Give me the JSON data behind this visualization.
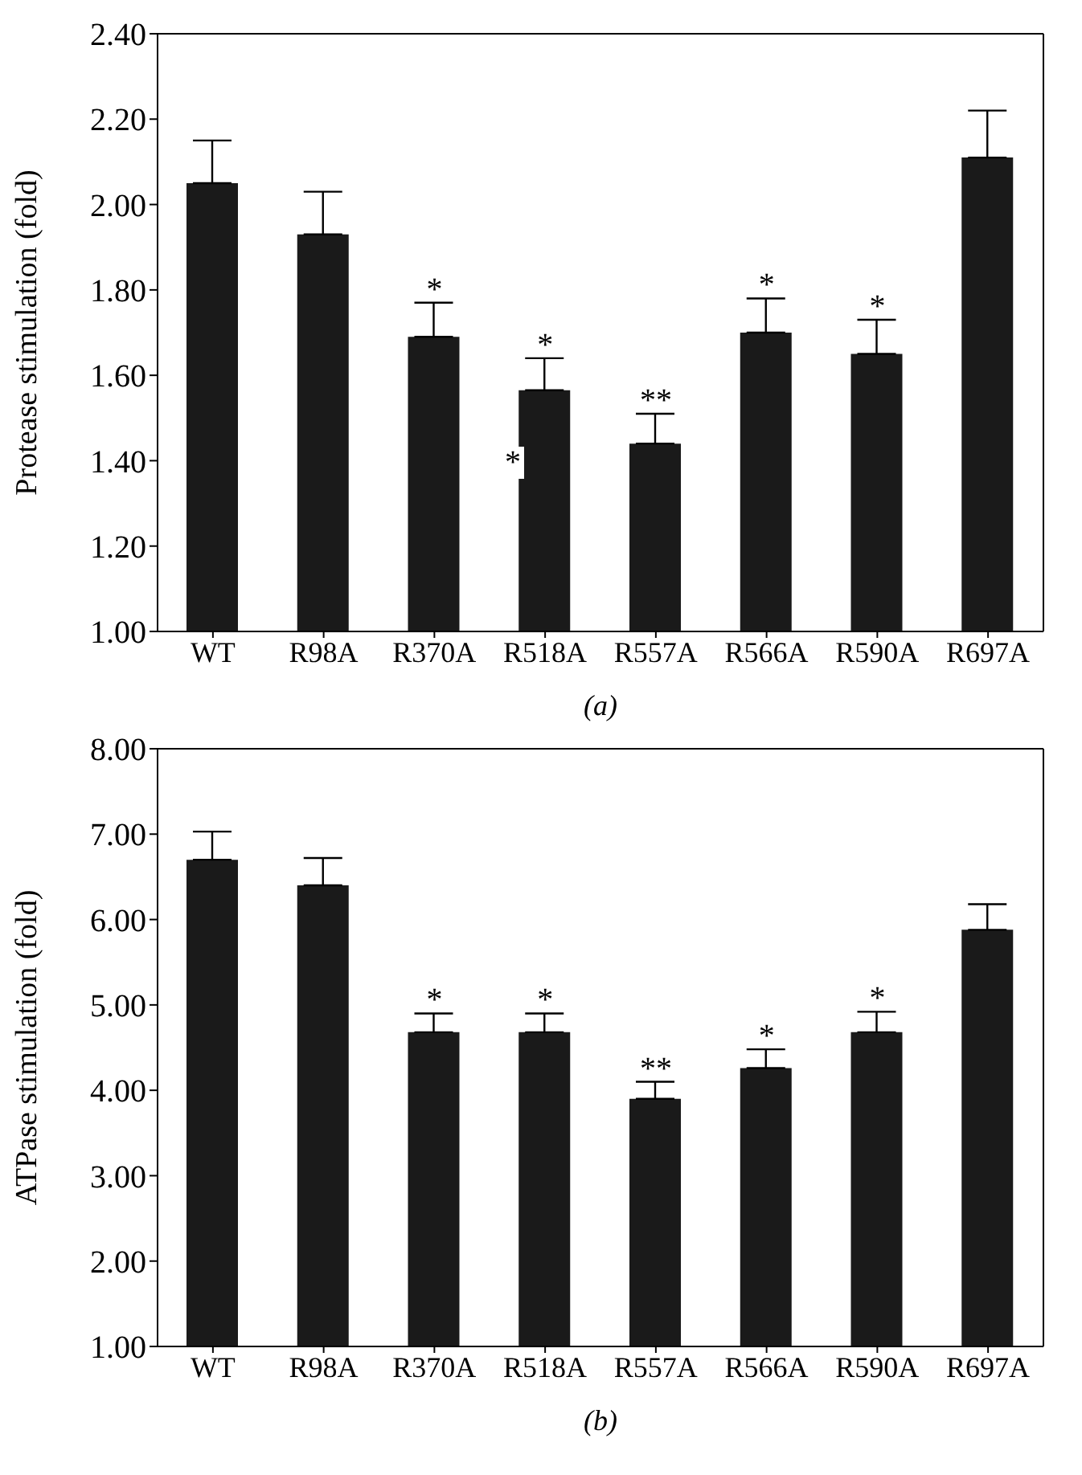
{
  "chart_data": [
    {
      "type": "bar",
      "xlabel": "(a)",
      "ylabel": "Protease stimulation (fold)",
      "categories": [
        "WT",
        "R98A",
        "R370A",
        "R518A",
        "R557A",
        "R566A",
        "R590A",
        "R697A"
      ],
      "values": [
        2.05,
        1.93,
        1.69,
        1.565,
        1.44,
        1.7,
        1.65,
        2.11
      ],
      "errors": [
        [
          2.05,
          2.15
        ],
        [
          1.93,
          2.03
        ],
        [
          1.69,
          1.77
        ],
        [
          1.565,
          1.64
        ],
        [
          1.44,
          1.51
        ],
        [
          1.7,
          1.78
        ],
        [
          1.65,
          1.73
        ],
        [
          2.11,
          2.22
        ]
      ],
      "color": "#1a1a1a",
      "ylim": [
        1.0,
        2.4
      ],
      "yticks": [
        {
          "value": 1.0,
          "label": "1.00"
        },
        {
          "value": 1.2,
          "label": "1.20"
        },
        {
          "value": 1.4,
          "label": "1.40"
        },
        {
          "value": 1.6,
          "label": "1.60"
        },
        {
          "value": 1.8,
          "label": "1.80"
        },
        {
          "value": 2.0,
          "label": "2.00"
        },
        {
          "value": 2.2,
          "label": "2.20"
        },
        {
          "value": 2.4,
          "label": "2.40"
        }
      ],
      "grid": false,
      "legend": false,
      "annotations": [
        {
          "text": "*",
          "x": "R370A",
          "y": 1.77
        },
        {
          "text": "*",
          "x": "R518A",
          "y": 1.64
        },
        {
          "text": "**",
          "x": "R557A",
          "y": 1.51
        },
        {
          "text": "*",
          "x": "R566A",
          "y": 1.78
        },
        {
          "text": "*",
          "x": "R590A",
          "y": 1.73
        },
        "*"
      ]
    },
    {
      "type": "bar",
      "xlabel": "(b)",
      "ylabel": "ATPase stimulation (fold)",
      "categories": [
        "WT",
        "R98A",
        "R370A",
        "R518A",
        "R557A",
        "R566A",
        "R590A",
        "R697A"
      ],
      "values": [
        6.7,
        6.4,
        4.68,
        4.68,
        3.9,
        4.26,
        4.68,
        5.88
      ],
      "errors": [
        [
          6.7,
          7.03
        ],
        [
          6.4,
          6.72
        ],
        [
          4.68,
          4.9
        ],
        [
          4.68,
          4.9
        ],
        [
          3.9,
          4.1
        ],
        [
          4.26,
          4.48
        ],
        [
          4.68,
          4.92
        ],
        [
          5.88,
          6.18
        ]
      ],
      "color": "#1a1a1a",
      "ylim": [
        1.0,
        8.0
      ],
      "yticks": [
        {
          "value": 1,
          "label": "1.00"
        },
        {
          "value": 2,
          "label": "2.00"
        },
        {
          "value": 3,
          "label": "3.00"
        },
        {
          "value": 4,
          "label": "4.00"
        },
        {
          "value": 5,
          "label": "5.00"
        },
        {
          "value": 6,
          "label": "6.00"
        },
        {
          "value": 7,
          "label": "7.00"
        },
        {
          "value": 8,
          "label": "8.00"
        }
      ],
      "grid": false,
      "legend": false,
      "annotations": [
        {
          "text": "*",
          "x": "R370A",
          "y": 4.9
        },
        {
          "text": "*",
          "x": "R518A",
          "y": 4.9
        },
        {
          "text": "**",
          "x": "R557A",
          "y": 4.1
        },
        {
          "text": "*",
          "x": "R566A",
          "y": 4.48
        },
        {
          "text": "*",
          "x": "R590A",
          "y": 4.92
        }
      ]
    }
  ]
}
